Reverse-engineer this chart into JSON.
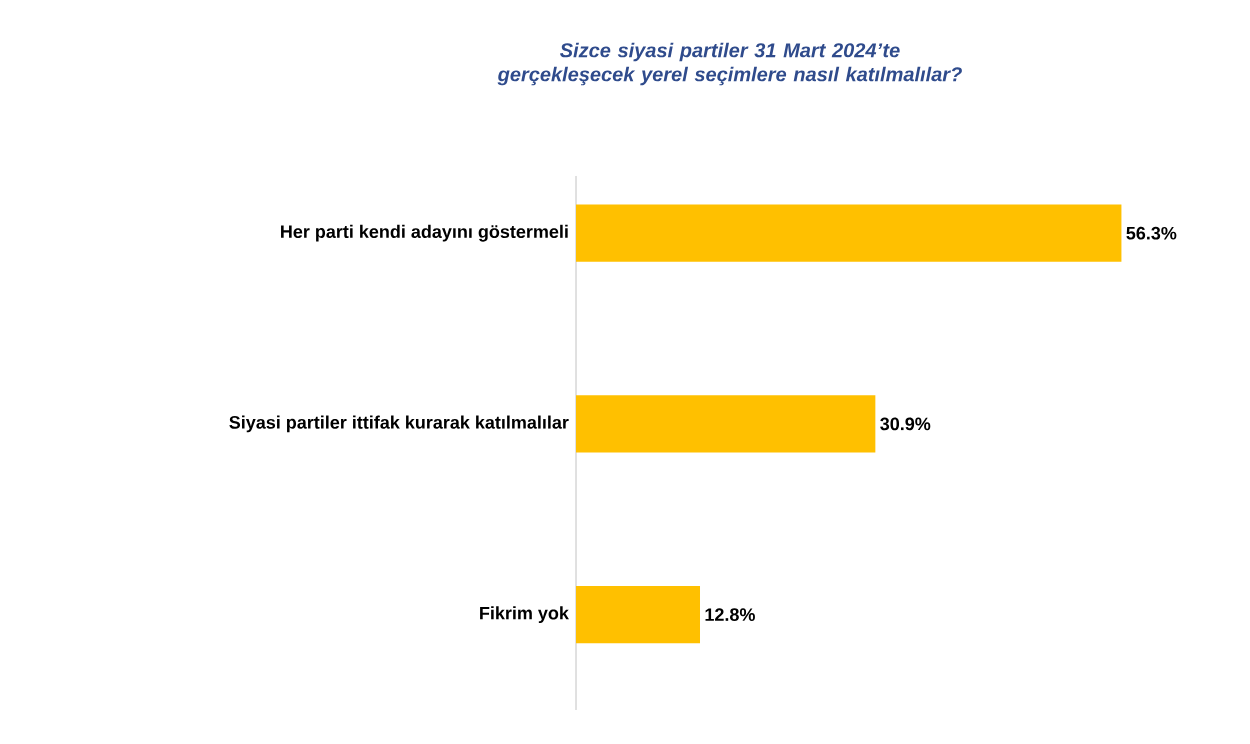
{
  "chart_data": {
    "type": "bar",
    "orientation": "horizontal",
    "title": "Sizce siyasi partiler 31 Mart 2024’te  gerçekleşecek yerel seçimlere nasıl katılmalılar?",
    "categories": [
      "Her parti kendi adayını göstermeli",
      "Siyasi partiler ittifak kurarak katılmalılar",
      "Fikrim yok"
    ],
    "values": [
      56.3,
      30.9,
      12.8
    ],
    "value_labels": [
      "56.3%",
      "30.9%",
      "12.8%"
    ],
    "color": "#ffc000",
    "tick_labels": "y"
  }
}
